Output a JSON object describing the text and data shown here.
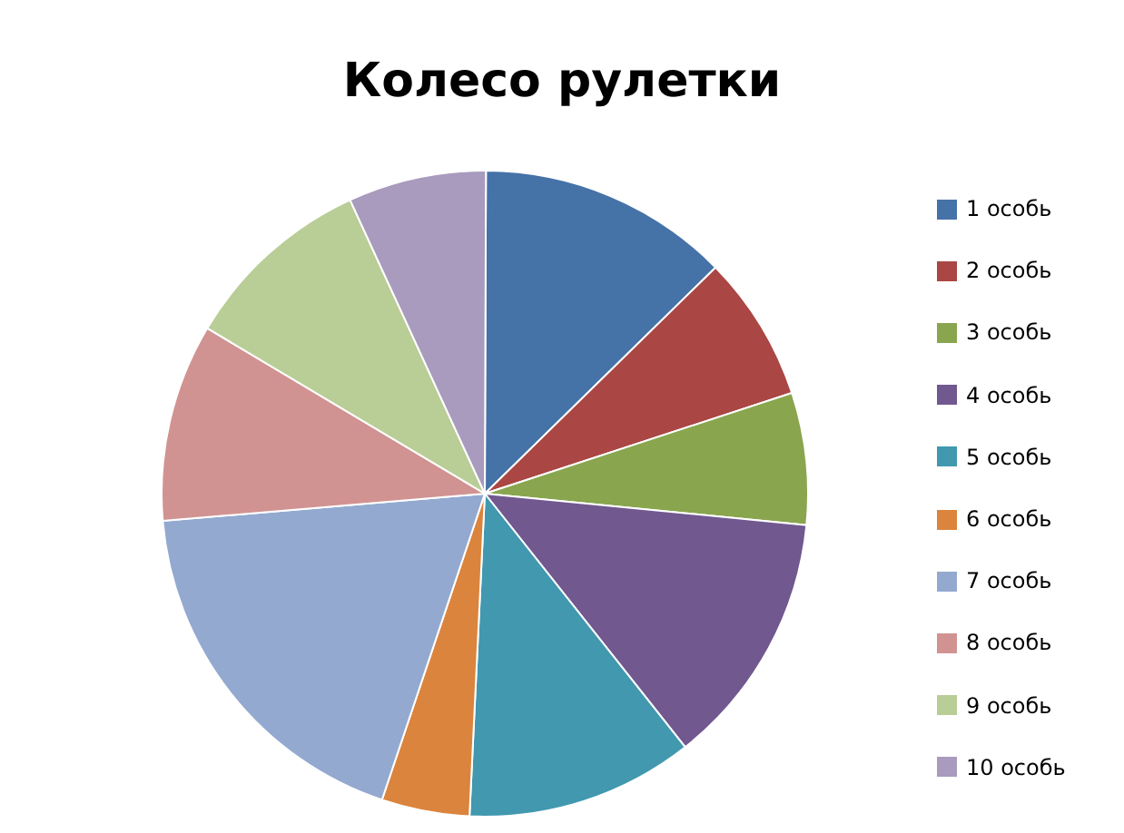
{
  "chart_data": {
    "type": "pie",
    "title": "Колесо рулетки",
    "categories": [
      "1 особь",
      "2 особь",
      "3 особь",
      "4 особь",
      "5 особь",
      "6 особь",
      "7 особь",
      "8 особь",
      "9 особь",
      "10 особь"
    ],
    "values": [
      12.6,
      7.3,
      6.6,
      12.8,
      11.4,
      4.4,
      18.5,
      9.9,
      9.6,
      6.9
    ],
    "colors": [
      "#4572a7",
      "#aa4643",
      "#89a54e",
      "#71588f",
      "#4198af",
      "#db843d",
      "#93a9cf",
      "#d19392",
      "#b9cd96",
      "#a99bbd"
    ],
    "legend": "right"
  }
}
